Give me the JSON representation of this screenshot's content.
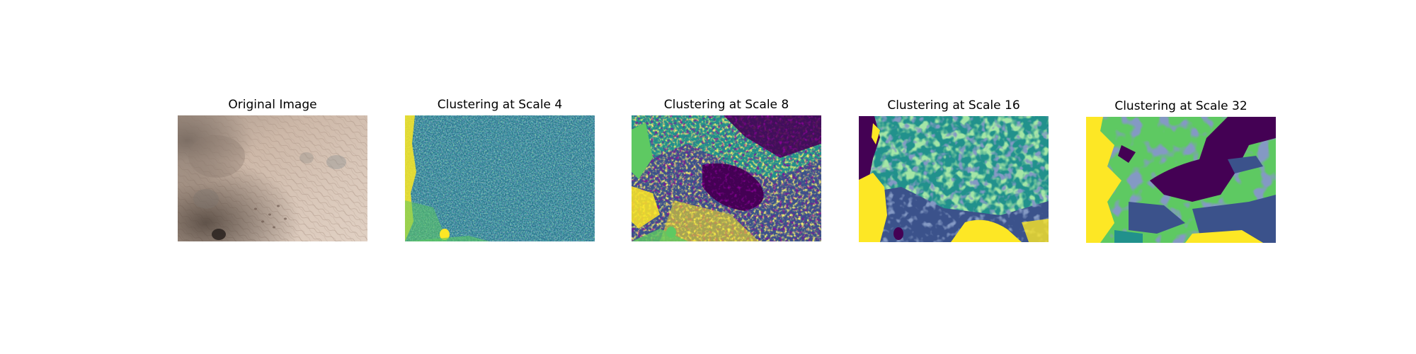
{
  "figure": {
    "panels": [
      {
        "title": "Original Image",
        "kind": "photo"
      },
      {
        "title": "Clustering at Scale 4",
        "kind": "clusters"
      },
      {
        "title": "Clustering at Scale 8",
        "kind": "clusters"
      },
      {
        "title": "Clustering at Scale 16",
        "kind": "clusters"
      },
      {
        "title": "Clustering at Scale 32",
        "kind": "clusters"
      }
    ],
    "cluster_colormap": "viridis",
    "cluster_colors": [
      "#440154",
      "#3b528b",
      "#21918c",
      "#5ec962",
      "#fde725"
    ],
    "photo_colors": {
      "skin_light": "#d9c4b4",
      "skin_mid": "#b9a293",
      "skin_shadow": "#7a6a60",
      "skin_dark": "#3b332e"
    }
  }
}
